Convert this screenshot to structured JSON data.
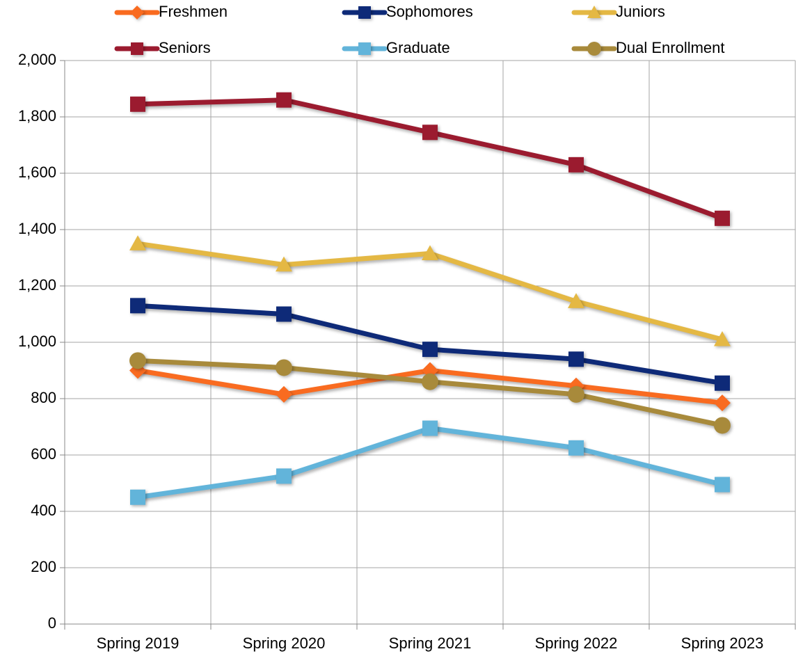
{
  "chart_data": {
    "type": "line",
    "categories": [
      "Spring 2019",
      "Spring 2020",
      "Spring 2021",
      "Spring 2022",
      "Spring 2023"
    ],
    "series": [
      {
        "name": "Freshmen",
        "color": "#f96b20",
        "marker": "diamond",
        "values": [
          900,
          815,
          900,
          845,
          785
        ]
      },
      {
        "name": "Sophomores",
        "color": "#0e2a78",
        "marker": "square",
        "values": [
          1130,
          1100,
          975,
          940,
          855
        ]
      },
      {
        "name": "Juniors",
        "color": "#e4b844",
        "marker": "triangle",
        "values": [
          1350,
          1275,
          1315,
          1145,
          1010
        ]
      },
      {
        "name": "Seniors",
        "color": "#9b1b2f",
        "marker": "square",
        "values": [
          1845,
          1860,
          1745,
          1630,
          1440
        ]
      },
      {
        "name": "Graduate",
        "color": "#62b4da",
        "marker": "square",
        "values": [
          450,
          525,
          695,
          625,
          495
        ]
      },
      {
        "name": "Dual Enrollment",
        "color": "#a88a3b",
        "marker": "circle",
        "values": [
          935,
          910,
          860,
          815,
          705
        ]
      }
    ],
    "ylim": [
      0,
      2000
    ],
    "yticks": [
      0,
      200,
      400,
      600,
      800,
      {
        "value": 1000,
        "label": "1,000"
      },
      {
        "value": 1200,
        "label": "1,200"
      },
      {
        "value": 1400,
        "label": "1,400"
      },
      {
        "value": 1600,
        "label": "1,600"
      },
      {
        "value": 1800,
        "label": "1,800"
      },
      {
        "value": 2000,
        "label": "2,000"
      }
    ],
    "grid": true,
    "legend": "top"
  }
}
